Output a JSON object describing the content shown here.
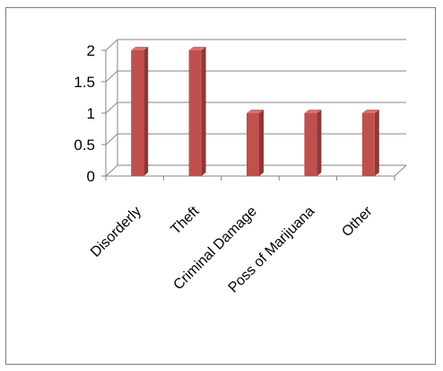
{
  "chart_data": {
    "type": "bar",
    "style": "3d-clustered-column",
    "categories": [
      "Disorderly",
      "Theft",
      "Criminal Damage",
      "Poss of Marijuana",
      "Other"
    ],
    "values": [
      2,
      2,
      1,
      1,
      1
    ],
    "ylim": [
      0,
      2
    ],
    "yticks": [
      "0",
      "0.5",
      "1",
      "1.5",
      "2"
    ],
    "ytick_values": [
      0,
      0.5,
      1,
      1.5,
      2
    ],
    "grid": true,
    "legend": "none",
    "colors": {
      "bar_front": "#c0504d",
      "bar_side": "#8c3836",
      "bar_top": "#d9706c",
      "grid": "#868686",
      "axis": "#868686"
    }
  }
}
